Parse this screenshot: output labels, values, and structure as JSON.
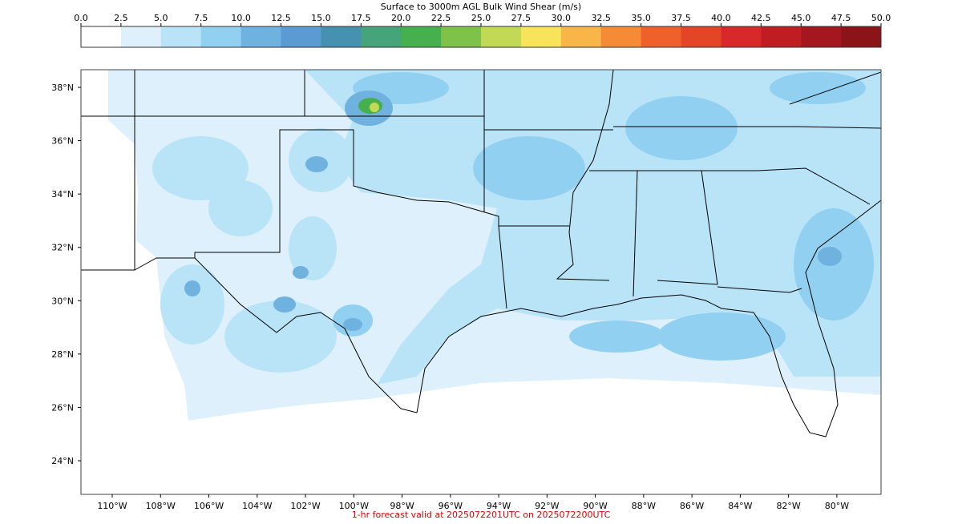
{
  "title": "Surface to 3000m AGL Bulk Wind Shear (m/s)",
  "colorbar": {
    "colors": [
      "#ffffff",
      "#ddf0fc",
      "#b9e3f7",
      "#92d0f2",
      "#6fb2e0",
      "#5a9bd4",
      "#4592b0",
      "#46a47a",
      "#45b04d",
      "#7fc24a",
      "#c2d955",
      "#f8e45a",
      "#f8b548",
      "#f58b35",
      "#f0602a",
      "#e44526",
      "#d8282a",
      "#c01d23",
      "#a5171e",
      "#8b1418"
    ],
    "ticks": [
      {
        "value": 0,
        "label": "0.0"
      },
      {
        "value": 2.5,
        "label": "2.5"
      },
      {
        "value": 5,
        "label": "5.0"
      },
      {
        "value": 7.5,
        "label": "7.5"
      },
      {
        "value": 10,
        "label": "10.0"
      },
      {
        "value": 12.5,
        "label": "12.5"
      },
      {
        "value": 15,
        "label": "15.0"
      },
      {
        "value": 17.5,
        "label": "17.5"
      },
      {
        "value": 20,
        "label": "20.0"
      },
      {
        "value": 22.5,
        "label": "22.5"
      },
      {
        "value": 25,
        "label": "25.0"
      },
      {
        "value": 27.5,
        "label": "27.5"
      },
      {
        "value": 30,
        "label": "30.0"
      },
      {
        "value": 32.5,
        "label": "32.5"
      },
      {
        "value": 35,
        "label": "35.0"
      },
      {
        "value": 37.5,
        "label": "37.5"
      },
      {
        "value": 40,
        "label": "40.0"
      },
      {
        "value": 42.5,
        "label": "42.5"
      },
      {
        "value": 45,
        "label": "45.0"
      },
      {
        "value": 47.5,
        "label": "47.5"
      },
      {
        "value": 50,
        "label": "50.0"
      }
    ]
  },
  "lat_ticks": [
    {
      "value": 38,
      "label": "38°N"
    },
    {
      "value": 36,
      "label": "36°N"
    },
    {
      "value": 34,
      "label": "34°N"
    },
    {
      "value": 32,
      "label": "32°N"
    },
    {
      "value": 30,
      "label": "30°N"
    },
    {
      "value": 28,
      "label": "28°N"
    },
    {
      "value": 26,
      "label": "26°N"
    },
    {
      "value": 24,
      "label": "24°N"
    }
  ],
  "lon_ticks": [
    {
      "value": -110,
      "label": "110°W"
    },
    {
      "value": -108,
      "label": "108°W"
    },
    {
      "value": -106,
      "label": "106°W"
    },
    {
      "value": -104,
      "label": "104°W"
    },
    {
      "value": -102,
      "label": "102°W"
    },
    {
      "value": -100,
      "label": "100°W"
    },
    {
      "value": -98,
      "label": "98°W"
    },
    {
      "value": -96,
      "label": "96°W"
    },
    {
      "value": -94,
      "label": "94°W"
    },
    {
      "value": -92,
      "label": "92°W"
    },
    {
      "value": -90,
      "label": "90°W"
    },
    {
      "value": -88,
      "label": "88°W"
    },
    {
      "value": -86,
      "label": "86°W"
    },
    {
      "value": -84,
      "label": "84°W"
    },
    {
      "value": -82,
      "label": "82°W"
    },
    {
      "value": -80,
      "label": "80°W"
    }
  ],
  "footer": "1-hr forecast valid at 2025072201UTC on 2025072200UTC"
}
